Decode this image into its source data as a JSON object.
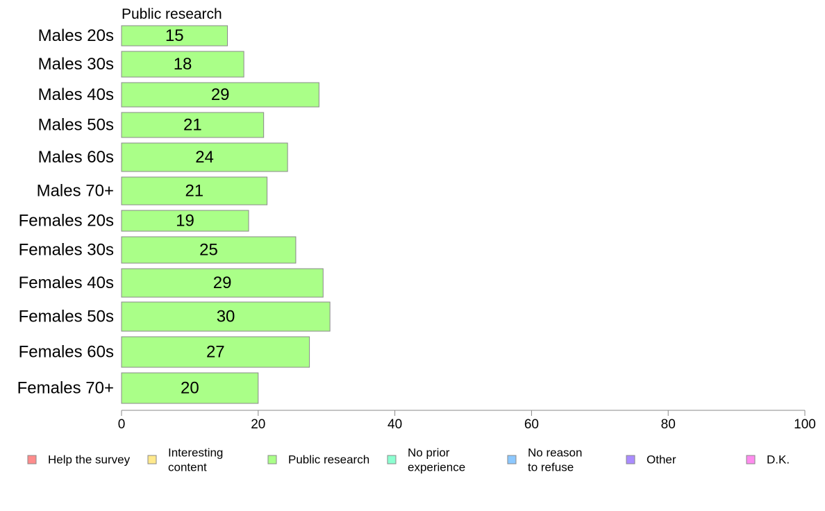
{
  "chart_data": {
    "type": "bar",
    "orientation": "horizontal",
    "panel_title": "Public research",
    "categories": [
      "Males 20s",
      "Males 30s",
      "Males 40s",
      "Males 50s",
      "Males 60s",
      "Males 70+",
      "Females 20s",
      "Females 30s",
      "Females 40s",
      "Females 50s",
      "Females 60s",
      "Females 70+"
    ],
    "series": [
      {
        "name": "Public research",
        "color": "#aaff88",
        "values": [
          15.5,
          17.9,
          28.9,
          20.8,
          24.3,
          21.3,
          18.6,
          25.5,
          29.5,
          30.5,
          27.5,
          20
        ]
      }
    ],
    "data_labels": [
      "15",
      "18",
      "29",
      "21",
      "24",
      "21",
      "19",
      "25",
      "29",
      "30",
      "27",
      "20"
    ],
    "xlim": [
      0,
      100
    ],
    "x_ticks": [
      "0",
      "20",
      "40",
      "60",
      "80",
      "100"
    ],
    "grid": false,
    "legend_position": "bottom",
    "legend": [
      {
        "label": [
          "Help the survey"
        ],
        "color": "#ff8c8c"
      },
      {
        "label": [
          "Interesting",
          "content"
        ],
        "color": "#ffe98c"
      },
      {
        "label": [
          "Public research"
        ],
        "color": "#aaff88"
      },
      {
        "label": [
          "No prior",
          "experience"
        ],
        "color": "#8cffd1"
      },
      {
        "label": [
          "No reason",
          "to refuse"
        ],
        "color": "#8cc8ff"
      },
      {
        "label": [
          "Other"
        ],
        "color": "#aa8cff"
      },
      {
        "label": [
          "D.K."
        ],
        "color": "#ff8cee"
      }
    ]
  }
}
